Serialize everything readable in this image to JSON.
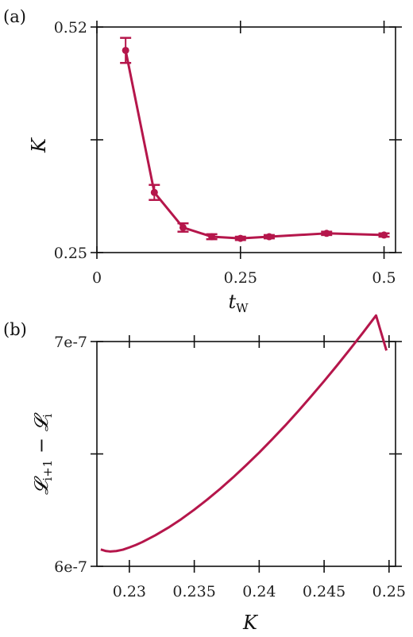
{
  "chart_data": [
    {
      "panel_label": "(a)",
      "type": "line",
      "xlabel": "t",
      "xlabel_subscript": "W",
      "ylabel": "K",
      "xlim": [
        0,
        0.52
      ],
      "ylim": [
        0.25,
        0.52
      ],
      "xticks": [
        0,
        0.25,
        0.5
      ],
      "xtick_labels": [
        "0",
        "0.25",
        "0.5"
      ],
      "yticks": [
        0.25,
        0.385,
        0.52
      ],
      "ytick_labels": [
        "0.25",
        "",
        "0.52"
      ],
      "grid": false,
      "color": "#b5164b",
      "series": [
        {
          "x": [
            0.05,
            0.1,
            0.15,
            0.2,
            0.25,
            0.3,
            0.4,
            0.5
          ],
          "y": [
            0.492,
            0.322,
            0.28,
            0.269,
            0.267,
            0.269,
            0.273,
            0.271
          ],
          "err": [
            0.015,
            0.009,
            0.005,
            0.003,
            0.002,
            0.002,
            0.002,
            0.002
          ]
        }
      ]
    },
    {
      "panel_label": "(b)",
      "type": "line",
      "xlabel": "K",
      "ylabel": "𝓛",
      "ylabel_sub1": "i+1",
      "ylabel_mid": " − 𝓛",
      "ylabel_sub2": "i",
      "xlim": [
        0.2275,
        0.2505
      ],
      "ylim": [
        6e-07,
        7e-07
      ],
      "xticks": [
        0.23,
        0.235,
        0.24,
        0.245,
        0.25
      ],
      "xtick_labels": [
        "0.23",
        "0.235",
        "0.24",
        "0.245",
        "0.25"
      ],
      "yticks": [
        6e-07,
        6.5e-07,
        7e-07
      ],
      "ytick_labels": [
        "6e-7",
        "",
        "7e-7"
      ],
      "grid": false,
      "color": "#b5164b",
      "series": [
        {
          "x": [
            0.2278,
            0.2282,
            0.2285,
            0.229,
            0.2295,
            0.23,
            0.2305,
            0.231,
            0.232,
            0.233,
            0.234,
            0.235,
            0.236,
            0.237,
            0.238,
            0.239,
            0.24,
            0.241,
            0.242,
            0.243,
            0.244,
            0.245,
            0.246,
            0.247,
            0.248,
            0.249,
            0.2498
          ],
          "y": [
            6.075e-07,
            6.068e-07,
            6.066e-07,
            6.068e-07,
            6.074e-07,
            6.084e-07,
            6.095e-07,
            6.108e-07,
            6.138e-07,
            6.172e-07,
            6.21e-07,
            6.252e-07,
            6.297e-07,
            6.345e-07,
            6.396e-07,
            6.45e-07,
            6.506e-07,
            6.565e-07,
            6.626e-07,
            6.69e-07,
            6.756e-07,
            6.824e-07,
            6.894e-07,
            6.966e-07,
            7.04e-07,
            7.116e-07,
            6.96e-07
          ]
        }
      ]
    }
  ]
}
